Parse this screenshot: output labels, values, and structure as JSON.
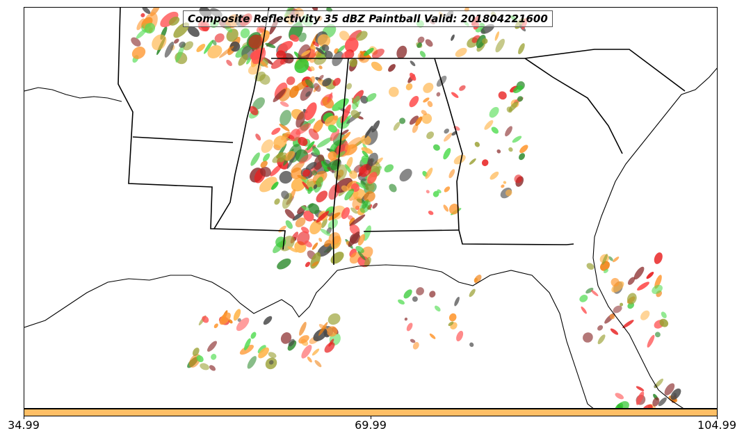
{
  "title": "Composite Reflectivity 35 dBZ Paintball Valid: 201804221600",
  "colorbar": {
    "color": "#ffbf66",
    "ticks": [
      "34.99",
      "69.99",
      "104.99"
    ]
  },
  "palette": [
    "#e81d1d",
    "#ff4d4d",
    "#f08010",
    "#ff9933",
    "#32c832",
    "#55dd55",
    "#9aa032",
    "#8c2f2f",
    "#4a4a4a",
    "#2e8b2e",
    "#ffb347"
  ],
  "map_features": [
    "coastline",
    "state-borders"
  ]
}
